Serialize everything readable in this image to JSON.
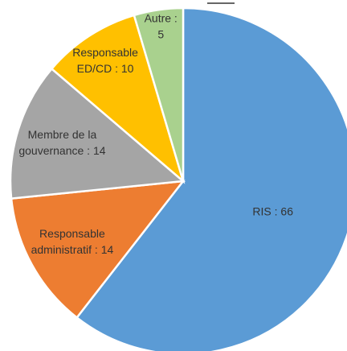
{
  "chart_data": {
    "type": "pie",
    "values": [
      66,
      14,
      14,
      10,
      5
    ],
    "value_labels": [
      "RIS : 66",
      "Responsable\nadministratif : 14",
      "Membre de la\ngouvernance : 14",
      "Responsable\nED/CD : 10",
      "Autre :\n5"
    ],
    "colors": [
      "#5b9bd5",
      "#ed7d31",
      "#a5a5a5",
      "#ffc000",
      "#a9d18e"
    ]
  }
}
